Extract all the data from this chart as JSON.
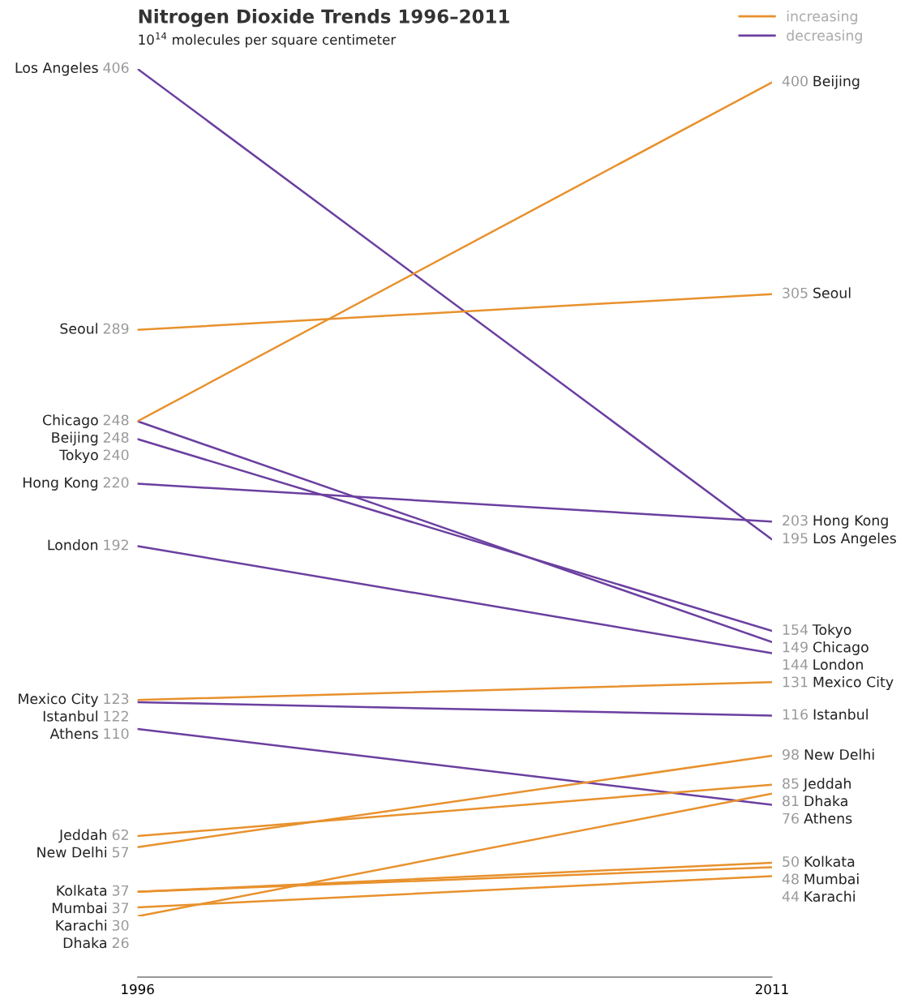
{
  "chart_data": {
    "type": "line",
    "title": "Nitrogen Dioxide Trends 1996–2011",
    "subtitle": "10$^{14}$ molecules per square centimeter",
    "x": [
      1996,
      2011
    ],
    "xlim": [
      1996,
      2011
    ],
    "xticks": [
      1996,
      2011
    ],
    "tick_labels": "x",
    "grid": false,
    "data_labels": true,
    "annotations": [
      "increasing",
      "decreasing"
    ],
    "series": [
      {
        "name": "Los Angeles",
        "color": "#6b3fa0",
        "values": [
          406,
          195
        ]
      },
      {
        "name": "Seoul",
        "color": "#e8912d",
        "values": [
          289,
          305
        ]
      },
      {
        "name": "Chicago",
        "color": "#6b3fa0",
        "values": [
          248,
          149
        ]
      },
      {
        "name": "Beijing",
        "color": "#e8912d",
        "values": [
          248,
          400
        ]
      },
      {
        "name": "Tokyo",
        "color": "#6b3fa0",
        "values": [
          240,
          154
        ]
      },
      {
        "name": "Hong Kong",
        "color": "#6b3fa0",
        "values": [
          220,
          203
        ]
      },
      {
        "name": "London",
        "color": "#6b3fa0",
        "values": [
          192,
          144
        ]
      },
      {
        "name": "Mexico City",
        "color": "#e8912d",
        "values": [
          123,
          131
        ]
      },
      {
        "name": "Istanbul",
        "color": "#6b3fa0",
        "values": [
          122,
          116
        ]
      },
      {
        "name": "Athens",
        "color": "#6b3fa0",
        "values": [
          110,
          76
        ]
      },
      {
        "name": "Jeddah",
        "color": "#e8912d",
        "values": [
          62,
          85
        ]
      },
      {
        "name": "New Delhi",
        "color": "#e8912d",
        "values": [
          57,
          98
        ]
      },
      {
        "name": "Kolkata",
        "color": "#e8912d",
        "values": [
          37,
          50
        ]
      },
      {
        "name": "Mumbai",
        "color": "#e8912d",
        "values": [
          37,
          48
        ]
      },
      {
        "name": "Karachi",
        "color": "#e8912d",
        "values": [
          30,
          44
        ]
      },
      {
        "name": "Dhaka",
        "color": "#e8912d",
        "values": [
          26,
          81
        ]
      }
    ]
  }
}
